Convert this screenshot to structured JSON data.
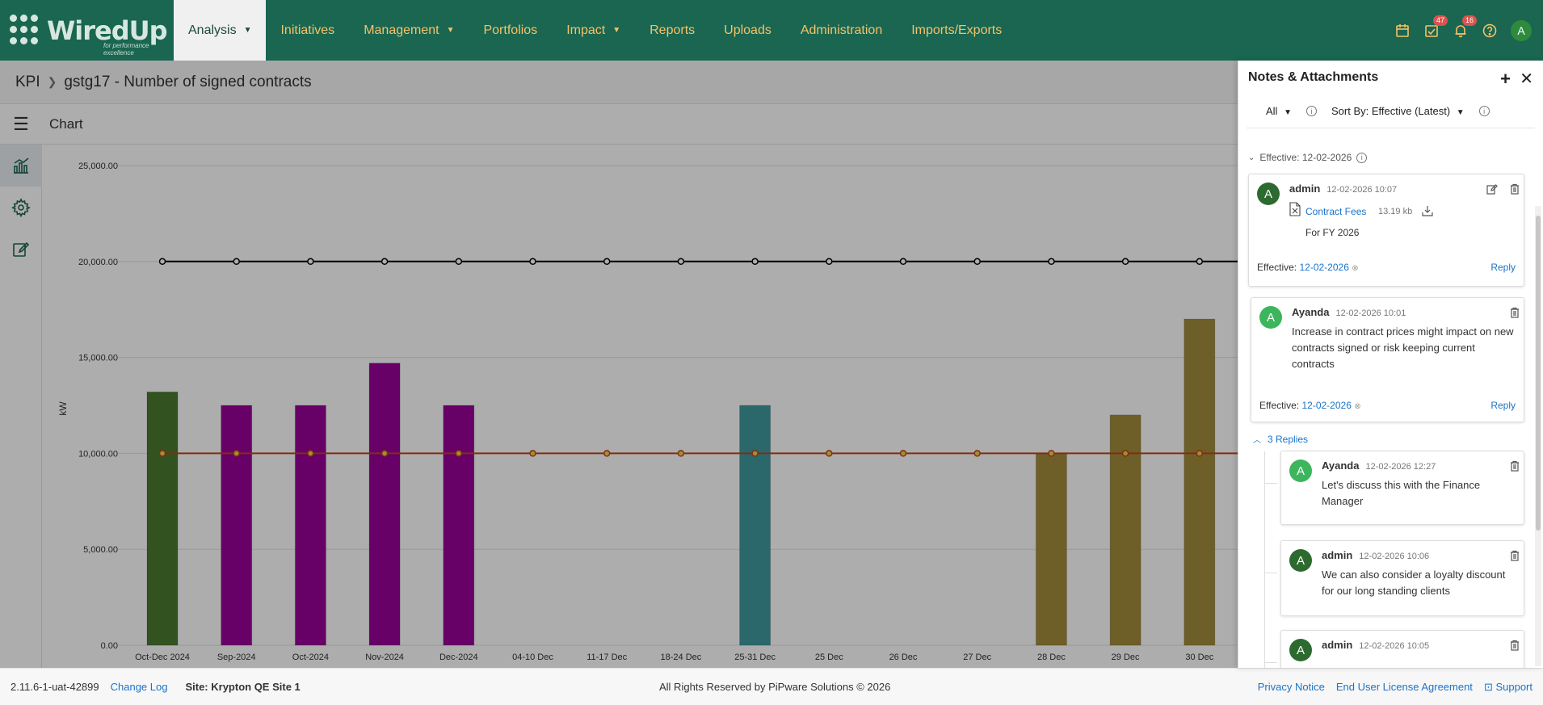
{
  "app": {
    "logo_text": "WiredUp",
    "logo_tagline": "for performance excellence"
  },
  "nav": {
    "items": [
      {
        "label": "Analysis",
        "has_caret": true,
        "active": true
      },
      {
        "label": "Initiatives",
        "has_caret": false
      },
      {
        "label": "Management",
        "has_caret": true
      },
      {
        "label": "Portfolios",
        "has_caret": false
      },
      {
        "label": "Impact",
        "has_caret": true
      },
      {
        "label": "Reports",
        "has_caret": false
      },
      {
        "label": "Uploads",
        "has_caret": false
      },
      {
        "label": "Administration",
        "has_caret": false
      },
      {
        "label": "Imports/Exports",
        "has_caret": false
      }
    ],
    "tasks_badge": "47",
    "notifications_badge": "16",
    "user_initial": "A"
  },
  "breadcrumb": {
    "root": "KPI",
    "current": "gstg17 - Number of signed contracts"
  },
  "toolbar": {
    "title": "Chart"
  },
  "chart_data": {
    "type": "bar",
    "ylabel": "kW",
    "ylim": [
      0,
      25000
    ],
    "yticks": [
      "25,000.00",
      "20,000.00",
      "15,000.00",
      "10,000.00",
      "5,000.00",
      "0.00"
    ],
    "categories": [
      "Oct-Dec 2024",
      "Sep-2024",
      "Oct-2024",
      "Nov-2024",
      "Dec-2024",
      "04-10 Dec",
      "11-17 Dec",
      "18-24 Dec",
      "25-31 Dec",
      "25 Dec",
      "26 Dec",
      "27 Dec",
      "28 Dec",
      "29 Dec",
      "30 Dec"
    ],
    "bars": [
      13200,
      12500,
      12500,
      14700,
      12500,
      null,
      null,
      null,
      12500,
      null,
      null,
      null,
      10000,
      12000,
      17000
    ],
    "bar_colors": [
      "#4a7a2e",
      "#980098",
      "#980098",
      "#980098",
      "#980098",
      null,
      null,
      null,
      "#3f9aa0",
      null,
      null,
      null,
      "#a38c3c",
      "#a38c3c",
      "#a38c3c"
    ],
    "series": [
      {
        "values": [
          20000,
          20000,
          20000,
          20000,
          20000,
          20000,
          20000,
          20000,
          20000,
          20000,
          20000,
          20000,
          20000,
          20000,
          20000
        ],
        "color": "#000000"
      },
      {
        "values": [
          10000,
          10000,
          10000,
          10000,
          10000,
          10000,
          10000,
          10000,
          10000,
          10000,
          10000,
          10000,
          10000,
          10000,
          10000
        ],
        "color": "#c0431a"
      }
    ],
    "grid": true
  },
  "panel": {
    "title": "Notes & Attachments",
    "filter_label": "All",
    "sort_label": "Sort By: Effective (Latest)",
    "group_label": "Effective: 12-02-2026",
    "note1": {
      "initial": "A",
      "author": "admin",
      "time": "12-02-2026 10:07",
      "file_name": "Contract Fees",
      "file_size": "13.19 kb",
      "text": "For FY 2026",
      "effective_label": "Effective:",
      "effective_date": "12-02-2026",
      "reply_label": "Reply"
    },
    "note2": {
      "initial": "A",
      "author": "Ayanda",
      "time": "12-02-2026 10:01",
      "text": "Increase in contract prices might impact on new contracts signed or risk keeping current contracts",
      "effective_label": "Effective:",
      "effective_date": "12-02-2026",
      "reply_label": "Reply"
    },
    "replies_label": "3 Replies",
    "replies": [
      {
        "initial": "A",
        "author": "Ayanda",
        "time": "12-02-2026 12:27",
        "text": "Let's discuss this with the Finance Manager"
      },
      {
        "initial": "A",
        "author": "admin",
        "time": "12-02-2026 10:06",
        "text": "We can also consider a loyalty discount for our long standing clients"
      },
      {
        "initial": "A",
        "author": "admin",
        "time": "12-02-2026 10:05",
        "text": ""
      }
    ]
  },
  "footer": {
    "version": "2.11.6-1-uat-42899",
    "changelog": "Change Log",
    "site": "Site: Krypton QE Site 1",
    "copyright": "All Rights Reserved by PiPware Solutions © 2026",
    "privacy": "Privacy Notice",
    "eula": "End User License Agreement",
    "support": "Support"
  }
}
